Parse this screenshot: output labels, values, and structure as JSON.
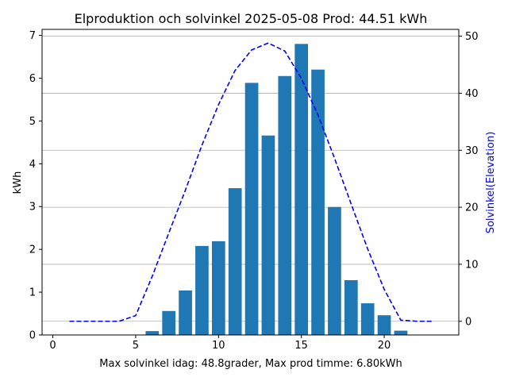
{
  "chart_data": {
    "type": "bar",
    "title": "Elproduktion och solvinkel 2025-05-08 Prod: 44.51 kWh",
    "xlabel": "Max solvinkel idag: 48.8grader, Max prod timme: 6.80kWh",
    "ylabel": "kWh",
    "y2label": "Solvinkel(Elevation)",
    "xlim": [
      -0.65,
      24.5
    ],
    "ylim": [
      0,
      7.14
    ],
    "y2lim": [
      -2.4,
      51.2
    ],
    "xticks": [
      0,
      5,
      10,
      15,
      20
    ],
    "yticks": [
      0,
      1,
      2,
      3,
      4,
      5,
      6,
      7
    ],
    "y2ticks": [
      0,
      10,
      20,
      30,
      40,
      50
    ],
    "grid": true,
    "colors": {
      "bars": "#1f77b4",
      "line": "#0000ff",
      "grid": "#b0b0b0"
    },
    "bars": {
      "name": "kWh",
      "x": [
        6,
        7,
        8,
        9,
        10,
        11,
        12,
        13,
        14,
        15,
        16,
        17,
        18,
        19,
        20,
        21
      ],
      "values": [
        0.09,
        0.56,
        1.04,
        2.08,
        2.19,
        3.43,
        5.89,
        4.66,
        6.05,
        6.8,
        6.2,
        2.99,
        1.28,
        0.74,
        0.46,
        0.1
      ]
    },
    "line": {
      "name": "Solvinkel(Elevation)",
      "style": "dashed",
      "x": [
        1,
        2,
        3,
        4,
        5,
        6,
        7,
        8,
        9,
        10,
        11,
        12,
        13,
        14,
        15,
        16,
        17,
        18,
        19,
        20,
        21,
        22,
        23
      ],
      "values": [
        0,
        0,
        0,
        0,
        1.0,
        7.9,
        15.5,
        23.0,
        30.9,
        38.0,
        44.0,
        47.6,
        48.8,
        47.4,
        42.6,
        36.2,
        28.6,
        20.6,
        12.7,
        5.6,
        0.2,
        0,
        0
      ]
    }
  }
}
